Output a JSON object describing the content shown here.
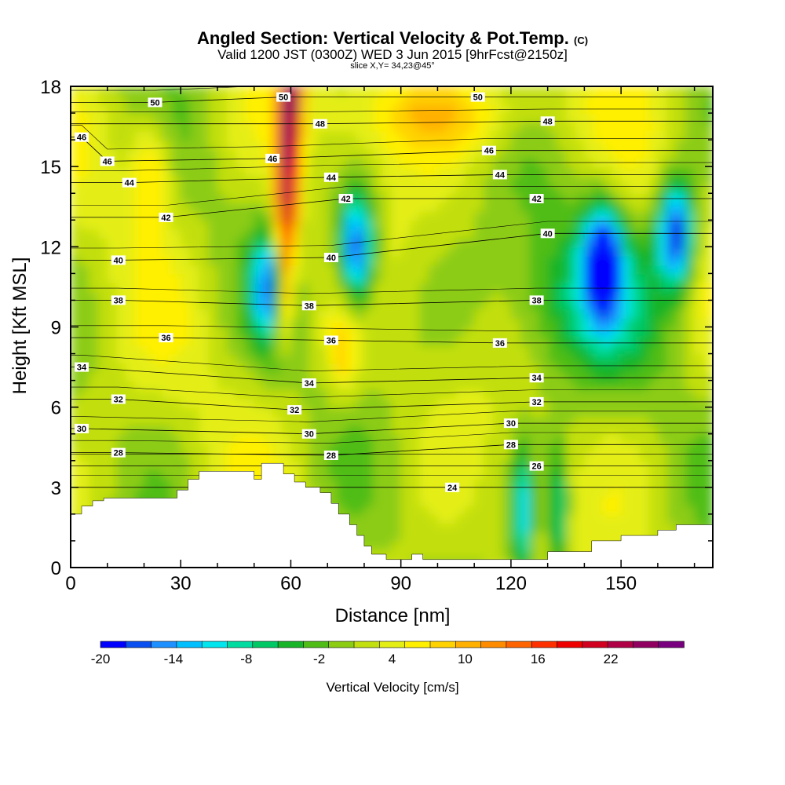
{
  "header": {
    "title": "Angled Section: Vertical Velocity & Pot.Temp.",
    "title_unit": "(C)",
    "valid_line": "Valid 1200 JST (0300Z) WED 3 Jun 2015 [9hrFcst@2150z]",
    "slice_line": "slice X,Y= 34,23@45°"
  },
  "chart_data": {
    "type": "heatmap",
    "xlabel": "Distance [nm]",
    "ylabel": "Height [Kft MSL]",
    "xlim": [
      0,
      175
    ],
    "ylim": [
      0,
      18
    ],
    "x_ticks": [
      0,
      30,
      60,
      90,
      120,
      150
    ],
    "y_ticks": [
      0,
      3,
      6,
      9,
      12,
      15,
      18
    ],
    "colorbar": {
      "label": "Vertical Velocity [cm/s]",
      "min": -20,
      "max": 26,
      "step": 2,
      "tick_labels": [
        "-20",
        "-14",
        "-8",
        "-2",
        "4",
        "10",
        "16",
        "22"
      ],
      "colors": [
        "#0000ff",
        "#0a4ff0",
        "#1e90ff",
        "#00bfff",
        "#00e5ee",
        "#00dca0",
        "#00c864",
        "#18b428",
        "#50bd16",
        "#8ccc12",
        "#c2df10",
        "#e4ee12",
        "#fff000",
        "#ffd200",
        "#ffb000",
        "#ff8c00",
        "#ff6400",
        "#ff3000",
        "#ee0000",
        "#d0001e",
        "#b00046",
        "#900060",
        "#78007e"
      ]
    },
    "updraft_core": {
      "x": 60,
      "top": 18,
      "bottom": 7.5,
      "peak_w": 20
    },
    "downdraft_cores": [
      {
        "x": 55,
        "y": 10.5,
        "w": -18
      },
      {
        "x": 78,
        "y": 12,
        "w": -20
      },
      {
        "x": 145,
        "y": 11.5,
        "w": -20
      },
      {
        "x": 165,
        "y": 12.5,
        "w": -20
      },
      {
        "x": 123,
        "y": 2.0,
        "w": -12
      },
      {
        "x": 133,
        "y": 2.0,
        "w": -10
      }
    ],
    "theta_labels": [
      {
        "x": 23,
        "y": 17.4,
        "text": "50"
      },
      {
        "x": 58,
        "y": 17.6,
        "text": "50"
      },
      {
        "x": 111,
        "y": 17.6,
        "text": "50"
      },
      {
        "x": 68,
        "y": 16.6,
        "text": "48"
      },
      {
        "x": 130,
        "y": 16.7,
        "text": "48"
      },
      {
        "x": 3,
        "y": 16.1,
        "text": "46"
      },
      {
        "x": 10,
        "y": 15.2,
        "text": "46"
      },
      {
        "x": 55,
        "y": 15.3,
        "text": "46"
      },
      {
        "x": 114,
        "y": 15.6,
        "text": "46"
      },
      {
        "x": 16,
        "y": 14.4,
        "text": "44"
      },
      {
        "x": 71,
        "y": 14.6,
        "text": "44"
      },
      {
        "x": 117,
        "y": 14.7,
        "text": "44"
      },
      {
        "x": 26,
        "y": 13.1,
        "text": "42"
      },
      {
        "x": 75,
        "y": 13.8,
        "text": "42"
      },
      {
        "x": 127,
        "y": 13.8,
        "text": "42"
      },
      {
        "x": 13,
        "y": 11.5,
        "text": "40"
      },
      {
        "x": 71,
        "y": 11.6,
        "text": "40"
      },
      {
        "x": 130,
        "y": 12.5,
        "text": "40"
      },
      {
        "x": 13,
        "y": 10.0,
        "text": "38"
      },
      {
        "x": 65,
        "y": 9.8,
        "text": "38"
      },
      {
        "x": 127,
        "y": 10.0,
        "text": "38"
      },
      {
        "x": 26,
        "y": 8.6,
        "text": "36"
      },
      {
        "x": 71,
        "y": 8.5,
        "text": "36"
      },
      {
        "x": 117,
        "y": 8.4,
        "text": "36"
      },
      {
        "x": 3,
        "y": 7.5,
        "text": "34"
      },
      {
        "x": 65,
        "y": 6.9,
        "text": "34"
      },
      {
        "x": 127,
        "y": 7.1,
        "text": "34"
      },
      {
        "x": 13,
        "y": 6.3,
        "text": "32"
      },
      {
        "x": 61,
        "y": 5.9,
        "text": "32"
      },
      {
        "x": 127,
        "y": 6.2,
        "text": "32"
      },
      {
        "x": 3,
        "y": 5.2,
        "text": "30"
      },
      {
        "x": 65,
        "y": 5.0,
        "text": "30"
      },
      {
        "x": 120,
        "y": 5.4,
        "text": "30"
      },
      {
        "x": 13,
        "y": 4.3,
        "text": "28"
      },
      {
        "x": 71,
        "y": 4.2,
        "text": "28"
      },
      {
        "x": 120,
        "y": 4.6,
        "text": "28"
      },
      {
        "x": 127,
        "y": 3.8,
        "text": "26"
      },
      {
        "x": 104,
        "y": 3.0,
        "text": "24"
      }
    ],
    "terrain": [
      [
        0,
        2.0
      ],
      [
        3,
        2.0
      ],
      [
        3,
        2.3
      ],
      [
        6,
        2.3
      ],
      [
        6,
        2.5
      ],
      [
        9,
        2.5
      ],
      [
        9,
        2.6
      ],
      [
        29,
        2.6
      ],
      [
        29,
        2.9
      ],
      [
        32,
        2.9
      ],
      [
        32,
        3.3
      ],
      [
        35,
        3.3
      ],
      [
        35,
        3.6
      ],
      [
        50,
        3.6
      ],
      [
        50,
        3.3
      ],
      [
        52,
        3.3
      ],
      [
        52,
        3.9
      ],
      [
        58,
        3.9
      ],
      [
        58,
        3.5
      ],
      [
        61,
        3.5
      ],
      [
        61,
        3.2
      ],
      [
        64,
        3.2
      ],
      [
        64,
        3.0
      ],
      [
        68,
        3.0
      ],
      [
        68,
        2.8
      ],
      [
        71,
        2.8
      ],
      [
        71,
        2.4
      ],
      [
        73,
        2.4
      ],
      [
        73,
        2.0
      ],
      [
        76,
        2.0
      ],
      [
        76,
        1.6
      ],
      [
        78,
        1.6
      ],
      [
        78,
        1.2
      ],
      [
        80,
        1.2
      ],
      [
        80,
        0.8
      ],
      [
        82,
        0.8
      ],
      [
        82,
        0.5
      ],
      [
        86,
        0.5
      ],
      [
        86,
        0.3
      ],
      [
        93,
        0.3
      ],
      [
        93,
        0.5
      ],
      [
        96,
        0.5
      ],
      [
        96,
        0.3
      ],
      [
        130,
        0.3
      ],
      [
        130,
        0.6
      ],
      [
        142,
        0.6
      ],
      [
        142,
        1.0
      ],
      [
        150,
        1.0
      ],
      [
        150,
        1.2
      ],
      [
        160,
        1.2
      ],
      [
        160,
        1.4
      ],
      [
        165,
        1.4
      ],
      [
        165,
        1.6
      ],
      [
        175,
        1.6
      ]
    ]
  }
}
